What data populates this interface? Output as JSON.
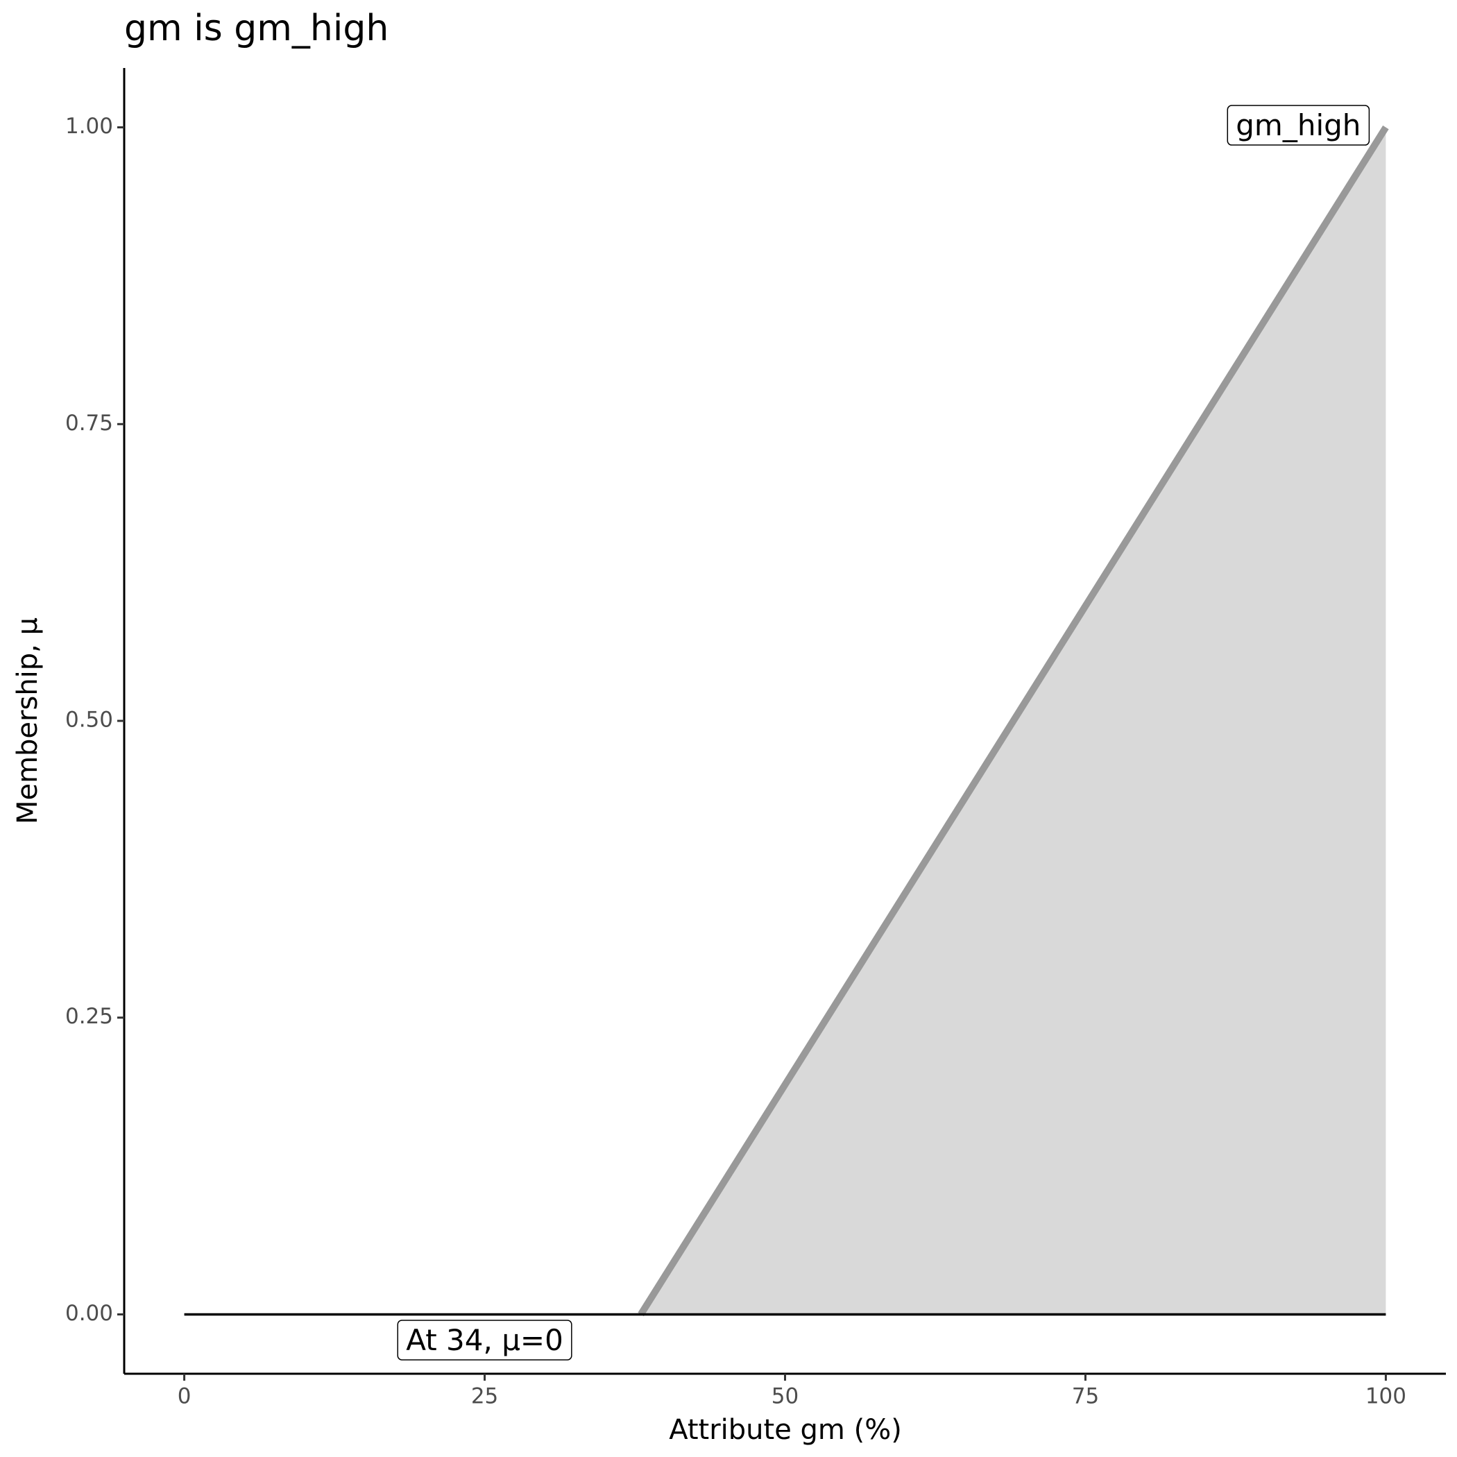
{
  "chart_data": {
    "type": "line",
    "title": "gm is gm_high",
    "x_label": "Attribute gm (%)",
    "y_label": "Membership, μ",
    "series": [
      {
        "name": "gm_high",
        "color": "#999999",
        "area_color": "#d9d9d9",
        "x": [
          38,
          100
        ],
        "values": [
          0,
          1
        ]
      },
      {
        "color": "#000000",
        "x": [
          0,
          100
        ],
        "values": [
          0,
          0
        ]
      }
    ],
    "annotation": "At 34, μ=0",
    "xlim": [
      -5,
      105
    ],
    "xticks": [
      0,
      25,
      50,
      75,
      100
    ],
    "ylim": [
      -0.05,
      1.05
    ],
    "yticks": [
      {
        "value": 0,
        "label": "0.00"
      },
      {
        "value": 0.25,
        "label": "0.25"
      },
      {
        "value": 0.5,
        "label": "0.50"
      },
      {
        "value": 0.75,
        "label": "0.75"
      },
      {
        "value": 1,
        "label": "1.00"
      }
    ],
    "grid": false
  }
}
